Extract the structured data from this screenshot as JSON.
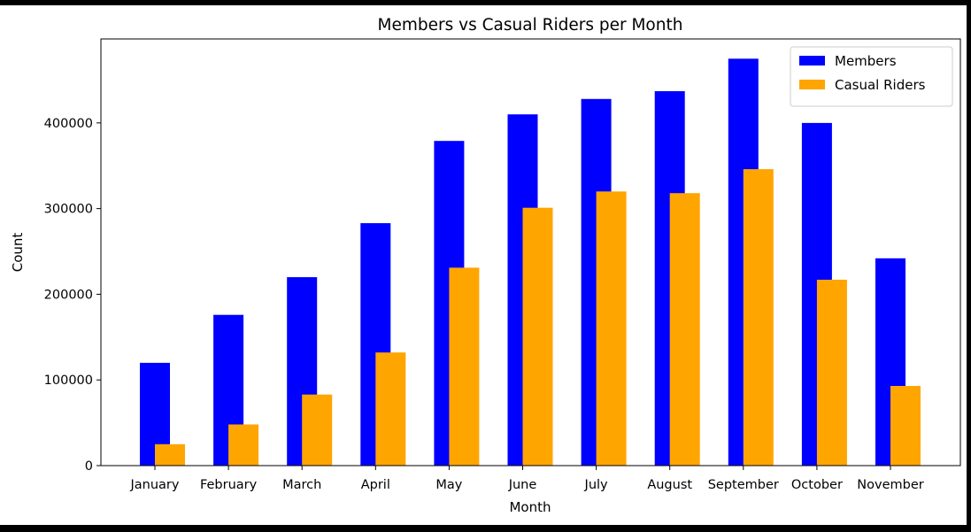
{
  "chart_data": {
    "type": "bar",
    "title": "Members vs Casual Riders per Month",
    "xlabel": "Month",
    "ylabel": "Count",
    "categories": [
      "January",
      "February",
      "March",
      "April",
      "May",
      "June",
      "July",
      "August",
      "September",
      "October",
      "November"
    ],
    "series": [
      {
        "name": "Members",
        "color": "#0000ff",
        "values": [
          120000,
          176000,
          220000,
          283000,
          379000,
          410000,
          428000,
          437000,
          475000,
          400000,
          242000
        ]
      },
      {
        "name": "Casual Riders",
        "color": "#ffa500",
        "values": [
          25000,
          48000,
          83000,
          132000,
          231000,
          301000,
          320000,
          318000,
          346000,
          217000,
          93000
        ]
      }
    ],
    "yticks": [
      0,
      100000,
      200000,
      300000,
      400000
    ],
    "ytick_labels": [
      "0",
      "100000",
      "200000",
      "300000",
      "400000"
    ],
    "ylim": [
      0,
      498000
    ],
    "grid": false,
    "legend_position": "upper right"
  }
}
